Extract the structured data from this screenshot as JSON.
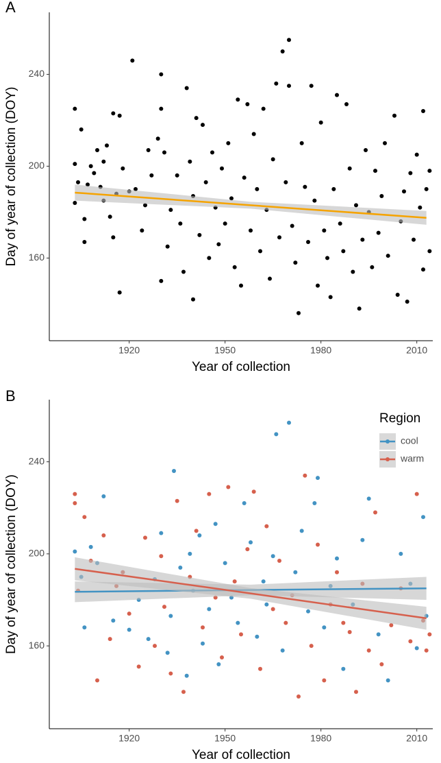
{
  "chart_data": [
    {
      "type": "scatter",
      "panel_label": "A",
      "x_label": "Year of collection",
      "y_label": "Day of year of collection (DOY)",
      "xlim": [
        1895,
        2015
      ],
      "ylim": [
        124,
        267
      ],
      "xticks": [
        1920,
        1950,
        1980,
        2010
      ],
      "yticks": [
        160,
        200,
        240
      ],
      "series": [
        {
          "color": "#000000",
          "x": [
            1903,
            1903,
            1903,
            1904,
            1905,
            1906,
            1906,
            1907,
            1908,
            1909,
            1910,
            1911,
            1912,
            1912,
            1913,
            1914,
            1915,
            1915,
            1916,
            1917,
            1918,
            1917,
            1920,
            1921,
            1922,
            1924,
            1925,
            1926,
            1927,
            1929,
            1930,
            1930,
            1930,
            1931,
            1932,
            1933,
            1935,
            1936,
            1937,
            1938,
            1939,
            1940,
            1940,
            1941,
            1942,
            1943,
            1944,
            1945,
            1946,
            1947,
            1948,
            1949,
            1950,
            1951,
            1952,
            1953,
            1954,
            1955,
            1956,
            1957,
            1958,
            1959,
            1960,
            1961,
            1962,
            1963,
            1964,
            1965,
            1966,
            1967,
            1968,
            1969,
            1970,
            1970,
            1971,
            1972,
            1973,
            1974,
            1975,
            1976,
            1977,
            1978,
            1979,
            1980,
            1981,
            1982,
            1983,
            1984,
            1985,
            1986,
            1987,
            1988,
            1989,
            1990,
            1991,
            1992,
            1993,
            1994,
            1995,
            1996,
            1997,
            1998,
            1999,
            2000,
            2001,
            2003,
            2004,
            2005,
            2006,
            2007,
            2008,
            2009,
            2010,
            2011,
            2012,
            2012,
            2013,
            2014,
            2014
          ],
          "values": [
            225,
            201,
            184,
            193,
            216,
            167,
            177,
            192,
            200,
            197,
            207,
            191,
            202,
            185,
            209,
            178,
            223,
            169,
            188,
            222,
            199,
            145,
            189,
            246,
            190,
            172,
            183,
            207,
            196,
            212,
            225,
            240,
            150,
            206,
            165,
            181,
            196,
            175,
            154,
            234,
            202,
            187,
            142,
            221,
            170,
            218,
            193,
            160,
            206,
            182,
            166,
            199,
            175,
            210,
            186,
            156,
            229,
            148,
            195,
            227,
            172,
            214,
            190,
            163,
            225,
            181,
            151,
            203,
            236,
            169,
            250,
            193,
            255,
            235,
            174,
            158,
            136,
            210,
            191,
            167,
            235,
            185,
            148,
            219,
            172,
            160,
            143,
            190,
            231,
            175,
            163,
            227,
            199,
            154,
            183,
            138,
            168,
            207,
            180,
            156,
            198,
            171,
            187,
            210,
            161,
            222,
            144,
            176,
            189,
            141,
            197,
            168,
            205,
            182,
            224,
            155,
            190,
            163,
            198
          ]
        }
      ],
      "fit": {
        "color": "#f5a300",
        "band_color": "#bdbdbd",
        "x": [
          1903,
          1958,
          2013
        ],
        "values": [
          188.5,
          183,
          177.5
        ],
        "lower": [
          185,
          181.5,
          174.5
        ],
        "upper": [
          192,
          184.5,
          180.5
        ]
      }
    },
    {
      "type": "scatter",
      "panel_label": "B",
      "x_label": "Year of collection",
      "y_label": "Day of year of collection (DOY)",
      "xlim": [
        1895,
        2015
      ],
      "ylim": [
        124,
        267
      ],
      "xticks": [
        1920,
        1950,
        1980,
        2010
      ],
      "yticks": [
        160,
        200,
        240
      ],
      "legend_title": "Region",
      "legend": "top-right",
      "series": [
        {
          "name": "cool",
          "color": "#4393c3",
          "x": [
            1903,
            1905,
            1906,
            1908,
            1910,
            1912,
            1915,
            1918,
            1920,
            1923,
            1926,
            1928,
            1930,
            1932,
            1933,
            1934,
            1936,
            1938,
            1939,
            1940,
            1942,
            1943,
            1945,
            1947,
            1948,
            1950,
            1952,
            1954,
            1956,
            1958,
            1960,
            1962,
            1963,
            1965,
            1966,
            1968,
            1970,
            1972,
            1974,
            1976,
            1978,
            1979,
            1981,
            1983,
            1985,
            1987,
            1990,
            1993,
            1995,
            1998,
            2001,
            2005,
            2008,
            2010,
            2012,
            2013
          ],
          "values": [
            201,
            190,
            168,
            203,
            196,
            225,
            171,
            192,
            167,
            180,
            163,
            189,
            209,
            157,
            173,
            236,
            194,
            147,
            200,
            184,
            208,
            161,
            176,
            213,
            152,
            196,
            181,
            170,
            222,
            205,
            164,
            188,
            178,
            199,
            252,
            158,
            257,
            192,
            210,
            175,
            222,
            233,
            168,
            186,
            198,
            150,
            178,
            206,
            224,
            165,
            145,
            200,
            187,
            159,
            216,
            173
          ]
        },
        {
          "name": "warm",
          "color": "#d6604d",
          "x": [
            1903,
            1903,
            1904,
            1906,
            1908,
            1910,
            1912,
            1914,
            1916,
            1918,
            1920,
            1923,
            1925,
            1928,
            1930,
            1931,
            1933,
            1935,
            1937,
            1939,
            1941,
            1943,
            1945,
            1947,
            1949,
            1951,
            1953,
            1955,
            1957,
            1959,
            1961,
            1963,
            1965,
            1967,
            1969,
            1971,
            1973,
            1975,
            1977,
            1979,
            1981,
            1983,
            1985,
            1987,
            1989,
            1991,
            1993,
            1995,
            1997,
            1999,
            2002,
            2005,
            2008,
            2010,
            2012,
            2013,
            2014
          ],
          "values": [
            226,
            222,
            184,
            216,
            197,
            145,
            208,
            163,
            186,
            192,
            174,
            151,
            207,
            160,
            199,
            177,
            148,
            223,
            140,
            190,
            210,
            168,
            226,
            181,
            155,
            229,
            188,
            165,
            202,
            227,
            150,
            212,
            176,
            197,
            170,
            182,
            138,
            234,
            160,
            204,
            145,
            178,
            192,
            170,
            166,
            140,
            187,
            158,
            218,
            152,
            169,
            185,
            162,
            226,
            171,
            158,
            165
          ]
        }
      ],
      "fits": [
        {
          "color": "#4393c3",
          "band_color": "#bdbdbd",
          "x": [
            1903,
            1958,
            2013
          ],
          "values": [
            183.5,
            184.3,
            185
          ],
          "lower": [
            179,
            182,
            180
          ],
          "upper": [
            188,
            186.6,
            190
          ]
        },
        {
          "color": "#d6604d",
          "band_color": "#bdbdbd",
          "x": [
            1903,
            1958,
            2013
          ],
          "values": [
            193.5,
            182.8,
            172
          ],
          "lower": [
            188.5,
            180.5,
            167
          ],
          "upper": [
            198.5,
            185.1,
            177
          ]
        }
      ]
    }
  ]
}
